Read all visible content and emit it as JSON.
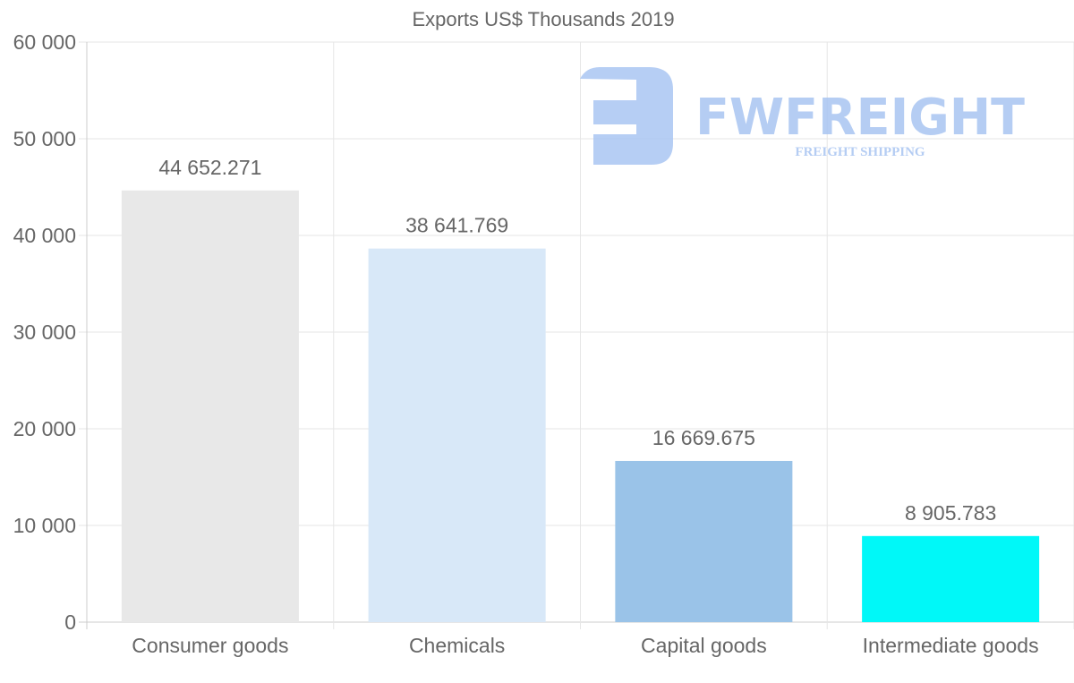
{
  "chart_data": {
    "type": "bar",
    "title": "Exports US$ Thousands 2019",
    "xlabel": "",
    "ylabel": "",
    "categories": [
      "Consumer goods",
      "Chemicals",
      "Capital goods",
      "Intermediate goods"
    ],
    "values": [
      44652.271,
      38641.769,
      16669.675,
      8905.783
    ],
    "data_labels": [
      "44 652.271",
      "38 641.769",
      "16 669.675",
      "8 905.783"
    ],
    "colors": [
      "#e8e8e8",
      "#d8e8f8",
      "#9ac3e8",
      "#00f8f8"
    ],
    "ylim": [
      0,
      60000
    ],
    "yticks": [
      0,
      10000,
      20000,
      30000,
      40000,
      50000,
      60000
    ],
    "ytick_labels": [
      "0",
      "10 000",
      "20 000",
      "30 000",
      "40 000",
      "50 000",
      "60 000"
    ],
    "grid": true,
    "legend": "none"
  },
  "watermark": {
    "brand": "FWFREIGHT",
    "tagline": "FREIGHT SHIPPING",
    "color": "#a9c5f2"
  }
}
